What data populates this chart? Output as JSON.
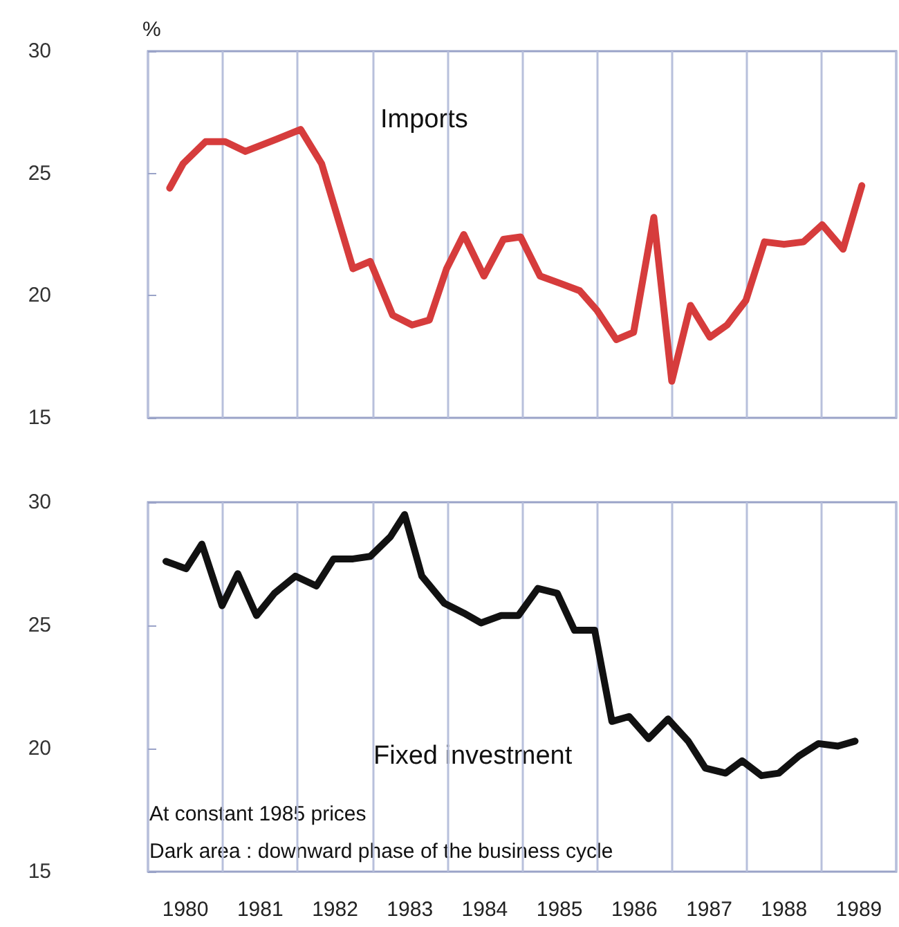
{
  "chart_data": [
    {
      "type": "line",
      "ylabel": "%",
      "xlim": [
        1980,
        1990
      ],
      "ylim": [
        15,
        30
      ],
      "yticks": [
        15,
        20,
        25,
        30
      ],
      "xticks": [
        {
          "value": 1980,
          "label": null
        },
        {
          "value": 1981,
          "label": null
        },
        {
          "value": 1982,
          "label": null
        },
        {
          "value": 1983,
          "label": null
        },
        {
          "value": 1984,
          "label": null
        },
        {
          "value": 1985,
          "label": null
        },
        {
          "value": 1986,
          "label": null
        },
        {
          "value": 1987,
          "label": null
        },
        {
          "value": 1988,
          "label": null
        },
        {
          "value": 1989,
          "label": null
        },
        {
          "value": 1990,
          "label": null
        }
      ],
      "grid": "x",
      "tick_labels": "y",
      "marker": "none",
      "series": [
        {
          "name": "Imports",
          "color": "#d63c3c",
          "x": [
            1980.29,
            1980.47,
            1980.77,
            1981.03,
            1981.3,
            1981.72,
            1982.04,
            1982.32,
            1982.74,
            1982.97,
            1983.27,
            1983.53,
            1983.76,
            1983.99,
            1984.22,
            1984.49,
            1984.75,
            1984.98,
            1985.24,
            1985.51,
            1985.77,
            1986.0,
            1986.26,
            1986.49,
            1986.76,
            1987.0,
            1987.25,
            1987.51,
            1987.74,
            1987.99,
            1988.24,
            1988.5,
            1988.76,
            1989.01,
            1989.29,
            1989.54
          ],
          "values": [
            24.4,
            25.4,
            26.3,
            26.3,
            25.9,
            26.4,
            26.8,
            25.4,
            21.1,
            21.4,
            19.2,
            18.8,
            19.0,
            21.1,
            22.5,
            20.8,
            22.3,
            22.4,
            20.8,
            20.5,
            20.2,
            19.4,
            18.2,
            18.5,
            23.2,
            16.5,
            19.6,
            18.3,
            18.8,
            19.8,
            22.2,
            22.1,
            22.2,
            22.9,
            21.9,
            24.5
          ]
        }
      ]
    },
    {
      "type": "line",
      "xlim": [
        1980,
        1990
      ],
      "ylim": [
        15,
        30
      ],
      "yticks": [
        15,
        20,
        25,
        30
      ],
      "xticks": [
        {
          "value": 1980.5,
          "label": "1980"
        },
        {
          "value": 1981.5,
          "label": "1981"
        },
        {
          "value": 1982.5,
          "label": "1982"
        },
        {
          "value": 1983.5,
          "label": "1983"
        },
        {
          "value": 1984.5,
          "label": "1984"
        },
        {
          "value": 1985.5,
          "label": "1985"
        },
        {
          "value": 1986.5,
          "label": "1986"
        },
        {
          "value": 1987.5,
          "label": "1987"
        },
        {
          "value": 1988.5,
          "label": "1988"
        },
        {
          "value": 1989.5,
          "label": "1989"
        }
      ],
      "grid": "x",
      "marker": "none",
      "annotations": [
        "At constant 1985 prices",
        "Dark area : downward phase of the business cycle"
      ],
      "series": [
        {
          "name": "Fixed investment",
          "color": "#111111",
          "x": [
            1980.24,
            1980.51,
            1980.72,
            1980.99,
            1981.2,
            1981.45,
            1981.69,
            1981.97,
            1982.25,
            1982.48,
            1982.74,
            1982.97,
            1983.24,
            1983.43,
            1983.66,
            1983.96,
            1984.22,
            1984.45,
            1984.72,
            1984.95,
            1985.21,
            1985.47,
            1985.7,
            1985.97,
            1986.2,
            1986.43,
            1986.69,
            1986.95,
            1987.22,
            1987.45,
            1987.72,
            1987.94,
            1988.2,
            1988.43,
            1988.7,
            1988.96,
            1989.22,
            1989.45
          ],
          "values": [
            27.6,
            27.3,
            28.3,
            25.8,
            27.1,
            25.4,
            26.3,
            27.0,
            26.6,
            27.7,
            27.7,
            27.8,
            28.6,
            29.5,
            27.0,
            25.9,
            25.5,
            25.1,
            25.4,
            25.4,
            26.5,
            26.3,
            24.8,
            24.8,
            21.1,
            21.3,
            20.4,
            21.2,
            20.3,
            19.2,
            19.0,
            19.5,
            18.9,
            19.0,
            19.7,
            20.2,
            20.1,
            20.3
          ]
        }
      ]
    }
  ]
}
